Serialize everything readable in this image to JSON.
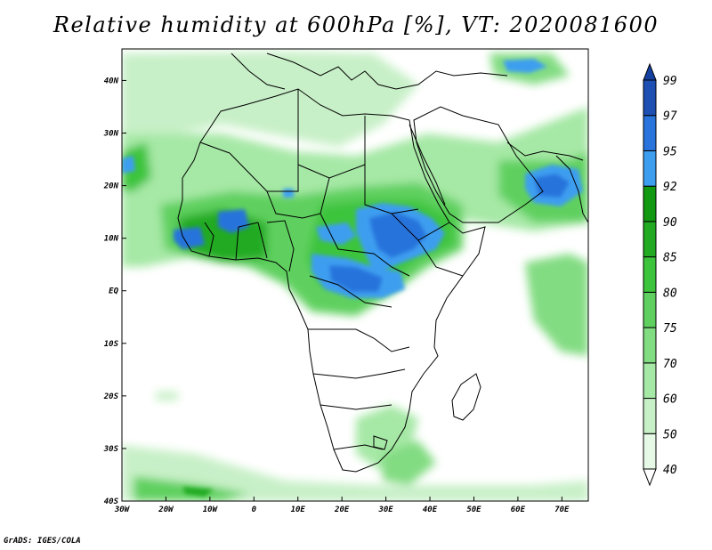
{
  "title": "Relative humidity at 600hPa [%], VT: 2020081600",
  "credit": "GrADS: IGES/COLA",
  "map": {
    "lon_range": [
      -30,
      76
    ],
    "lat_range": [
      -40,
      46
    ],
    "lon_ticks": [
      {
        "value": -30,
        "label": "30W"
      },
      {
        "value": -20,
        "label": "20W"
      },
      {
        "value": -10,
        "label": "10W"
      },
      {
        "value": 0,
        "label": "0"
      },
      {
        "value": 10,
        "label": "10E"
      },
      {
        "value": 20,
        "label": "20E"
      },
      {
        "value": 30,
        "label": "30E"
      },
      {
        "value": 40,
        "label": "40E"
      },
      {
        "value": 50,
        "label": "50E"
      },
      {
        "value": 60,
        "label": "60E"
      },
      {
        "value": 70,
        "label": "70E"
      }
    ],
    "lat_ticks": [
      {
        "value": 40,
        "label": "40N"
      },
      {
        "value": 30,
        "label": "30N"
      },
      {
        "value": 20,
        "label": "20N"
      },
      {
        "value": 10,
        "label": "10N"
      },
      {
        "value": 0,
        "label": "EQ"
      },
      {
        "value": -10,
        "label": "10S"
      },
      {
        "value": -20,
        "label": "20S"
      },
      {
        "value": -30,
        "label": "30S"
      },
      {
        "value": -40,
        "label": "40S"
      }
    ]
  },
  "colorbar": {
    "levels": [
      "40",
      "50",
      "60",
      "70",
      "75",
      "80",
      "85",
      "90",
      "92",
      "95",
      "97",
      "99"
    ],
    "colors": [
      "#ffffff",
      "#e6f9e6",
      "#c8f0c8",
      "#a6e8a6",
      "#82dc82",
      "#5fd05f",
      "#3cc43c",
      "#22aa22",
      "#119911",
      "#3d9ef0",
      "#2873dc",
      "#1e50b4",
      "#1440a0"
    ]
  },
  "colors": {
    "land_line": "#000000",
    "background": "#ffffff"
  }
}
